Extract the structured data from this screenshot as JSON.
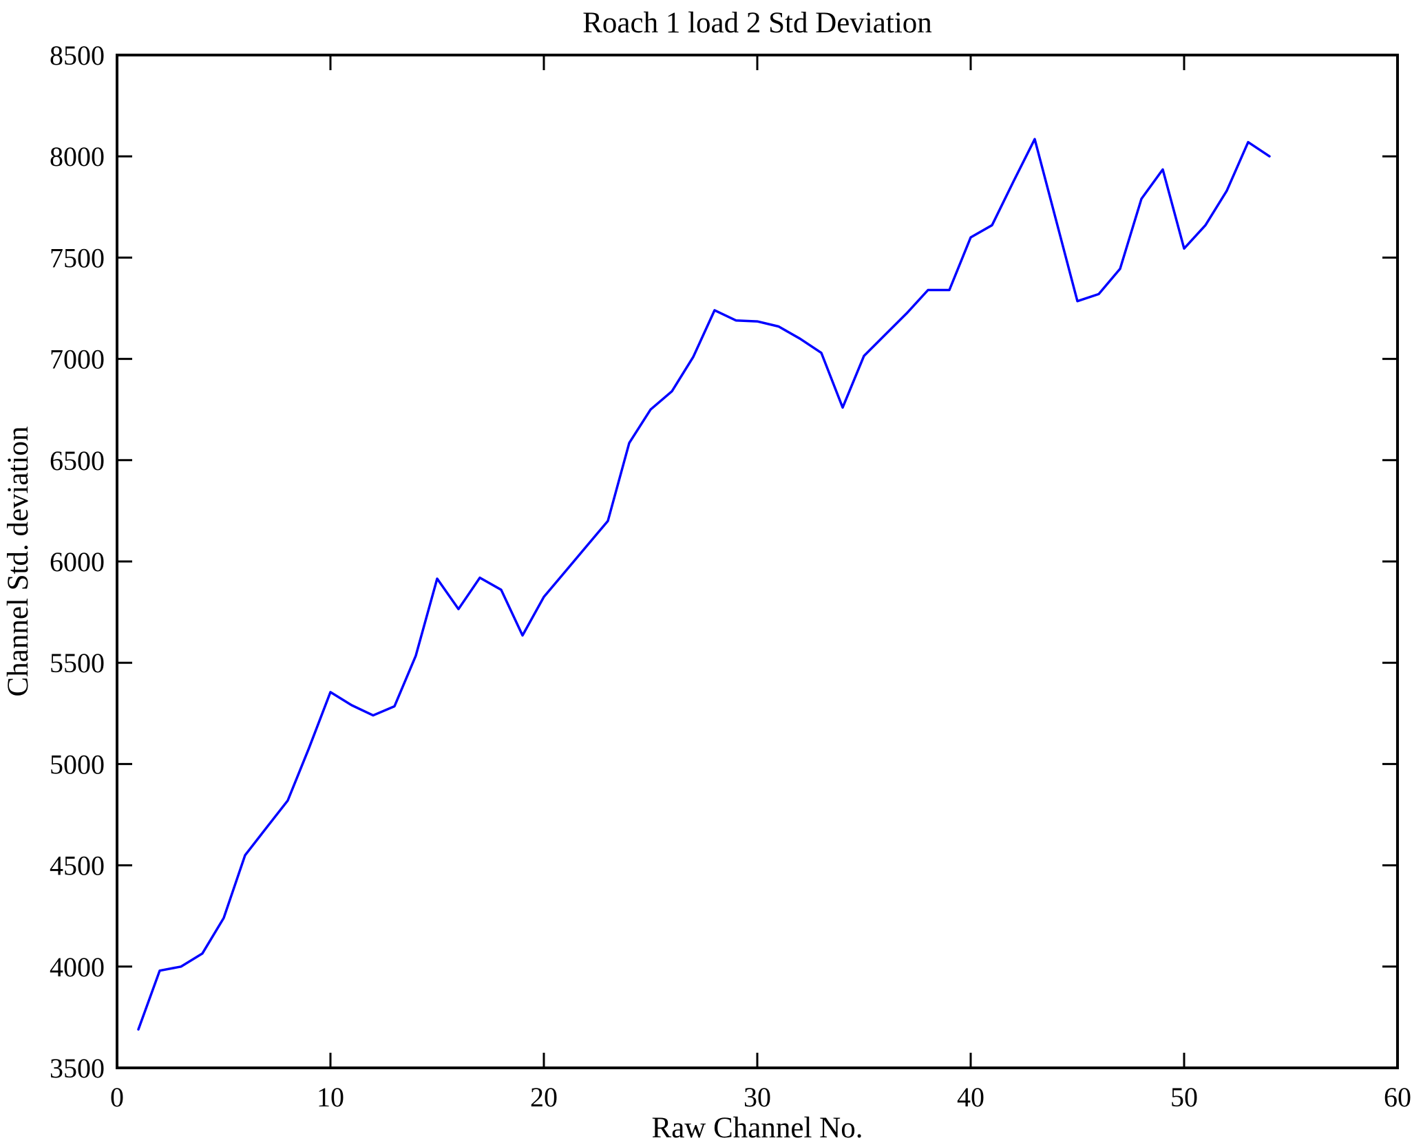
{
  "chart_data": {
    "type": "line",
    "title": "Roach 1 load 2 Std Deviation",
    "xlabel": "Raw Channel No.",
    "ylabel": "Channel Std. deviation",
    "xlim": [
      0,
      60
    ],
    "ylim": [
      3500,
      8500
    ],
    "x_ticks": [
      "0",
      "10",
      "20",
      "30",
      "40",
      "50",
      "60"
    ],
    "y_ticks": [
      "3500",
      "4000",
      "4500",
      "5000",
      "5500",
      "6000",
      "6500",
      "7000",
      "7500",
      "8000",
      "8500"
    ],
    "grid": false,
    "legend_position": "none",
    "box": true,
    "tick_direction": "in",
    "colors": {
      "line": "#0000ff",
      "axis": "#000000",
      "text": "#000000",
      "background": "#ffffff"
    },
    "series": [
      {
        "name": "channel-std-deviation",
        "x": [
          1,
          2,
          3,
          4,
          5,
          6,
          7,
          8,
          9,
          10,
          11,
          12,
          13,
          14,
          15,
          16,
          17,
          18,
          19,
          20,
          21,
          22,
          23,
          24,
          25,
          26,
          27,
          28,
          29,
          30,
          31,
          32,
          33,
          34,
          35,
          36,
          37,
          38,
          39,
          40,
          41,
          42,
          43,
          44,
          45,
          46,
          47,
          48,
          49,
          50,
          51,
          52,
          53,
          54
        ],
        "values": [
          3690,
          3980,
          4000,
          4065,
          4240,
          4550,
          4685,
          4820,
          5080,
          5355,
          5290,
          5240,
          5285,
          5535,
          5915,
          5765,
          5920,
          5860,
          5635,
          5825,
          5950,
          6075,
          6200,
          6585,
          6750,
          6840,
          7010,
          7240,
          7190,
          7185,
          7160,
          7100,
          7030,
          6760,
          7015,
          7120,
          7225,
          7340,
          7340,
          7600,
          7660,
          7875,
          8085,
          7685,
          7285,
          7320,
          7445,
          7790,
          7935,
          7545,
          7660,
          7830,
          8070,
          8000
        ]
      }
    ]
  }
}
